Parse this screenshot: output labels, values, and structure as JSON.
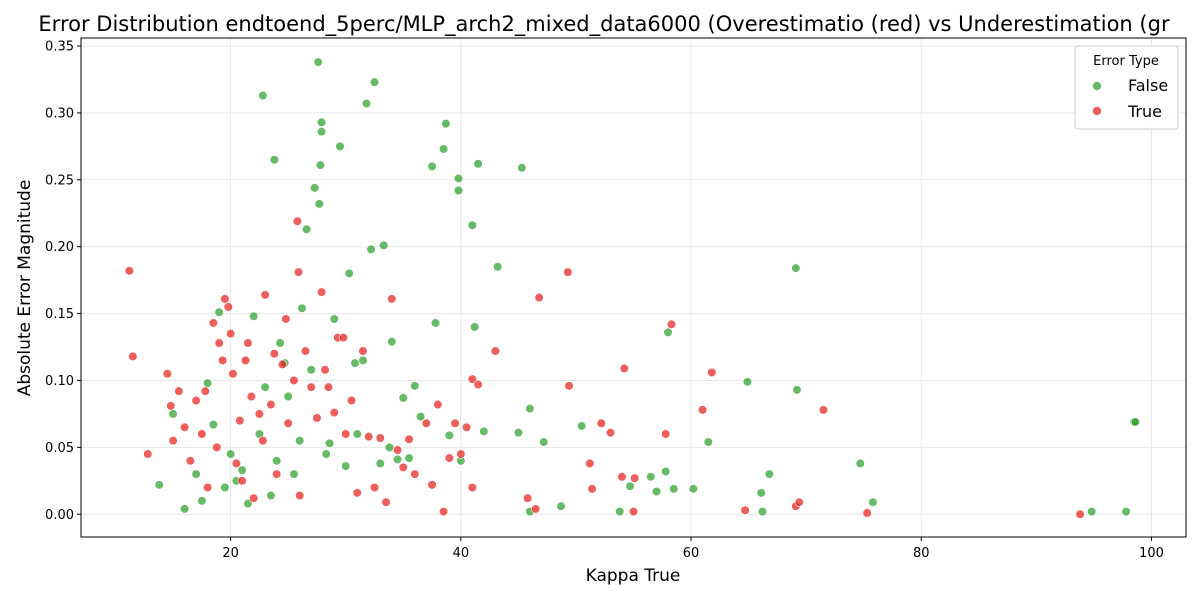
{
  "chart_data": {
    "type": "scatter",
    "title": "Error Distribution endtoend_5perc/MLP_arch2_mixed_data6000 (Overestimatio (red) vs Underestimation (gr",
    "xlabel": "Kappa True",
    "ylabel": "Absolute Error Magnitude",
    "xlim": [
      7,
      103
    ],
    "ylim": [
      -0.017,
      0.356
    ],
    "x_ticks": [
      20,
      40,
      60,
      80,
      100
    ],
    "y_ticks": [
      0.0,
      0.05,
      0.1,
      0.15,
      0.2,
      0.25,
      0.3,
      0.35
    ],
    "x_tick_labels": [
      "20",
      "40",
      "60",
      "80",
      "100"
    ],
    "y_tick_labels": [
      "0.00",
      "0.05",
      "0.10",
      "0.15",
      "0.20",
      "0.25",
      "0.30",
      "0.35"
    ],
    "grid": true,
    "legend": {
      "title": "Error Type",
      "position": "top-right"
    },
    "series": [
      {
        "name": "False",
        "color": "#2ca02c",
        "points": [
          [
            13.8,
            0.022
          ],
          [
            15,
            0.075
          ],
          [
            16,
            0.004
          ],
          [
            17,
            0.03
          ],
          [
            17.5,
            0.01
          ],
          [
            18,
            0.098
          ],
          [
            18.5,
            0.067
          ],
          [
            19,
            0.151
          ],
          [
            19.5,
            0.02
          ],
          [
            20,
            0.045
          ],
          [
            20.5,
            0.025
          ],
          [
            21,
            0.033
          ],
          [
            21.5,
            0.008
          ],
          [
            22,
            0.148
          ],
          [
            22.5,
            0.06
          ],
          [
            22.8,
            0.313
          ],
          [
            23,
            0.095
          ],
          [
            23.5,
            0.014
          ],
          [
            23.8,
            0.265
          ],
          [
            24,
            0.04
          ],
          [
            24.3,
            0.128
          ],
          [
            24.7,
            0.113
          ],
          [
            25,
            0.088
          ],
          [
            25.5,
            0.03
          ],
          [
            26,
            0.055
          ],
          [
            26.2,
            0.154
          ],
          [
            26.6,
            0.213
          ],
          [
            27,
            0.108
          ],
          [
            27.3,
            0.244
          ],
          [
            27.6,
            0.338
          ],
          [
            27.7,
            0.232
          ],
          [
            27.8,
            0.261
          ],
          [
            27.9,
            0.286
          ],
          [
            27.9,
            0.293
          ],
          [
            28.3,
            0.045
          ],
          [
            28.6,
            0.053
          ],
          [
            29,
            0.146
          ],
          [
            29.5,
            0.275
          ],
          [
            30,
            0.036
          ],
          [
            30.3,
            0.18
          ],
          [
            30.8,
            0.113
          ],
          [
            31,
            0.06
          ],
          [
            31.5,
            0.115
          ],
          [
            31.8,
            0.307
          ],
          [
            32.2,
            0.198
          ],
          [
            32.5,
            0.323
          ],
          [
            33,
            0.038
          ],
          [
            33.3,
            0.201
          ],
          [
            33.8,
            0.05
          ],
          [
            34,
            0.129
          ],
          [
            34.5,
            0.041
          ],
          [
            35,
            0.087
          ],
          [
            35.5,
            0.042
          ],
          [
            36,
            0.096
          ],
          [
            36.5,
            0.073
          ],
          [
            37.5,
            0.26
          ],
          [
            37.8,
            0.143
          ],
          [
            38.5,
            0.273
          ],
          [
            38.7,
            0.292
          ],
          [
            39,
            0.059
          ],
          [
            39.8,
            0.251
          ],
          [
            39.8,
            0.242
          ],
          [
            40,
            0.04
          ],
          [
            41,
            0.216
          ],
          [
            41.2,
            0.14
          ],
          [
            41.5,
            0.262
          ],
          [
            42,
            0.062
          ],
          [
            43.2,
            0.185
          ],
          [
            45,
            0.061
          ],
          [
            45.3,
            0.259
          ],
          [
            46,
            0.002
          ],
          [
            46,
            0.079
          ],
          [
            47.2,
            0.054
          ],
          [
            48.7,
            0.006
          ],
          [
            50.5,
            0.066
          ],
          [
            53.8,
            0.002
          ],
          [
            54.7,
            0.021
          ],
          [
            56.5,
            0.028
          ],
          [
            57,
            0.017
          ],
          [
            57.8,
            0.032
          ],
          [
            58,
            0.136
          ],
          [
            58.5,
            0.019
          ],
          [
            60.2,
            0.019
          ],
          [
            61.5,
            0.054
          ],
          [
            64.9,
            0.099
          ],
          [
            66.1,
            0.016
          ],
          [
            66.2,
            0.002
          ],
          [
            66.8,
            0.03
          ],
          [
            69.1,
            0.184
          ],
          [
            69.2,
            0.093
          ],
          [
            74.7,
            0.038
          ],
          [
            75.8,
            0.009
          ],
          [
            94.8,
            0.002
          ],
          [
            97.8,
            0.002
          ],
          [
            98.5,
            0.069
          ],
          [
            98.6,
            0.069
          ]
        ]
      },
      {
        "name": "True",
        "color": "#e8201e",
        "points": [
          [
            11.2,
            0.182
          ],
          [
            11.5,
            0.118
          ],
          [
            12.8,
            0.045
          ],
          [
            14.5,
            0.105
          ],
          [
            14.8,
            0.081
          ],
          [
            15,
            0.055
          ],
          [
            15.5,
            0.092
          ],
          [
            16,
            0.065
          ],
          [
            16.5,
            0.04
          ],
          [
            17,
            0.085
          ],
          [
            17.5,
            0.06
          ],
          [
            17.8,
            0.092
          ],
          [
            18,
            0.02
          ],
          [
            18.5,
            0.143
          ],
          [
            18.8,
            0.05
          ],
          [
            19,
            0.128
          ],
          [
            19.3,
            0.115
          ],
          [
            19.5,
            0.161
          ],
          [
            19.8,
            0.155
          ],
          [
            20,
            0.135
          ],
          [
            20.2,
            0.105
          ],
          [
            20.5,
            0.038
          ],
          [
            20.8,
            0.07
          ],
          [
            21,
            0.025
          ],
          [
            21.3,
            0.115
          ],
          [
            21.5,
            0.128
          ],
          [
            21.8,
            0.088
          ],
          [
            22,
            0.012
          ],
          [
            22.5,
            0.075
          ],
          [
            22.8,
            0.055
          ],
          [
            23,
            0.164
          ],
          [
            23.5,
            0.082
          ],
          [
            23.8,
            0.12
          ],
          [
            24,
            0.03
          ],
          [
            24.5,
            0.112
          ],
          [
            24.8,
            0.146
          ],
          [
            25,
            0.068
          ],
          [
            25.5,
            0.1
          ],
          [
            25.8,
            0.219
          ],
          [
            25.9,
            0.181
          ],
          [
            26,
            0.014
          ],
          [
            26.5,
            0.122
          ],
          [
            27,
            0.095
          ],
          [
            27.5,
            0.072
          ],
          [
            27.9,
            0.166
          ],
          [
            28.2,
            0.108
          ],
          [
            28.5,
            0.095
          ],
          [
            29,
            0.076
          ],
          [
            29.3,
            0.132
          ],
          [
            29.8,
            0.132
          ],
          [
            30,
            0.06
          ],
          [
            30.5,
            0.085
          ],
          [
            31,
            0.016
          ],
          [
            31.5,
            0.122
          ],
          [
            32,
            0.058
          ],
          [
            32.5,
            0.02
          ],
          [
            33,
            0.057
          ],
          [
            33.5,
            0.009
          ],
          [
            34,
            0.161
          ],
          [
            34.5,
            0.048
          ],
          [
            35,
            0.035
          ],
          [
            35.5,
            0.056
          ],
          [
            36,
            0.03
          ],
          [
            37,
            0.068
          ],
          [
            37.5,
            0.022
          ],
          [
            38,
            0.082
          ],
          [
            38.5,
            0.002
          ],
          [
            39,
            0.042
          ],
          [
            39.5,
            0.068
          ],
          [
            40,
            0.045
          ],
          [
            40.5,
            0.065
          ],
          [
            41,
            0.02
          ],
          [
            41,
            0.101
          ],
          [
            41.5,
            0.097
          ],
          [
            43,
            0.122
          ],
          [
            45.8,
            0.012
          ],
          [
            46.5,
            0.004
          ],
          [
            46.8,
            0.162
          ],
          [
            49.3,
            0.181
          ],
          [
            49.4,
            0.096
          ],
          [
            51.2,
            0.038
          ],
          [
            51.4,
            0.019
          ],
          [
            52.2,
            0.068
          ],
          [
            53,
            0.061
          ],
          [
            54,
            0.028
          ],
          [
            54.2,
            0.109
          ],
          [
            55,
            0.002
          ],
          [
            55.1,
            0.027
          ],
          [
            57.8,
            0.06
          ],
          [
            58.3,
            0.142
          ],
          [
            61,
            0.078
          ],
          [
            61.8,
            0.106
          ],
          [
            64.7,
            0.003
          ],
          [
            69.1,
            0.006
          ],
          [
            69.4,
            0.009
          ],
          [
            71.5,
            0.078
          ],
          [
            75.3,
            0.001
          ],
          [
            93.8,
            0.0
          ]
        ]
      }
    ]
  }
}
